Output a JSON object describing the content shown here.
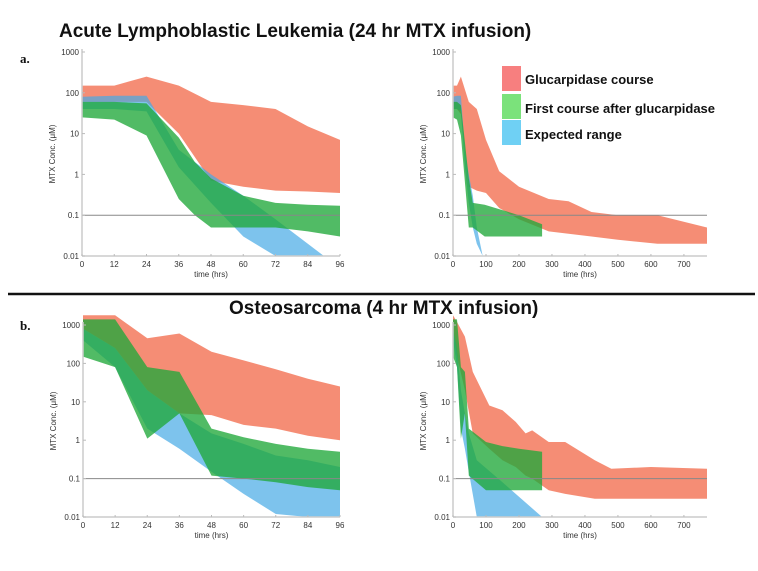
{
  "panel_titles": {
    "a": "Acute Lymphoblastic Leukemia (24 hr MTX infusion)",
    "b": "Osteosarcoma (4 hr MTX infusion)"
  },
  "panel_labels": {
    "a": "a.",
    "b": "b."
  },
  "legend": [
    {
      "label": "Glucarpidase course",
      "color": "#f4826a"
    },
    {
      "label": "First course after glucarpidase",
      "color": "#49b849"
    },
    {
      "label": "Expected range",
      "color": "#5fb8e8"
    }
  ],
  "chart_data": [
    {
      "id": "a-left",
      "type": "area",
      "title": "Acute Lymphoblastic Leukemia (24 hr MTX infusion)",
      "xlabel": "time (hrs)",
      "ylabel": "MTX Conc. (μM)",
      "yscale": "log",
      "xlim": [
        0,
        96
      ],
      "ylim": [
        0.01,
        1000
      ],
      "xticks": [
        0,
        12,
        24,
        36,
        48,
        60,
        72,
        84,
        96
      ],
      "yticks": [
        0.01,
        0.1,
        1,
        10,
        100,
        1000
      ],
      "ytick_labels": [
        "0.01",
        "0.1",
        "1",
        "10",
        "100",
        "1000"
      ],
      "reference_line": 0.1,
      "grid": false,
      "series": [
        {
          "name": "Glucarpidase course",
          "x": [
            0,
            12,
            24,
            36,
            48,
            60,
            72,
            84,
            96
          ],
          "upper": [
            150,
            150,
            250,
            150,
            60,
            50,
            40,
            15,
            7
          ],
          "lower": [
            60,
            60,
            60,
            10,
            0.7,
            0.5,
            0.4,
            0.38,
            0.35
          ]
        },
        {
          "name": "First course after glucarpidase",
          "x": [
            0,
            12,
            24,
            36,
            42,
            48,
            60,
            72,
            84,
            96
          ],
          "upper": [
            60,
            60,
            55,
            8,
            2,
            0.8,
            0.3,
            0.2,
            0.18,
            0.17
          ],
          "lower": [
            25,
            22,
            9,
            0.25,
            0.1,
            0.05,
            0.05,
            0.05,
            0.04,
            0.03
          ]
        },
        {
          "name": "Expected range",
          "x": [
            0,
            12,
            24,
            36,
            48,
            60,
            72,
            84,
            90
          ],
          "upper": [
            80,
            85,
            85,
            4,
            1,
            0.3,
            0.08,
            0.02,
            0.01
          ],
          "lower": [
            40,
            40,
            35,
            1.5,
            0.2,
            0.03,
            0.01,
            0.01,
            0.01
          ]
        }
      ]
    },
    {
      "id": "a-right",
      "type": "area",
      "xlabel": "time (hrs)",
      "ylabel": "MTX Conc. (μM)",
      "yscale": "log",
      "xlim": [
        0,
        770
      ],
      "ylim": [
        0.01,
        1000
      ],
      "xticks": [
        0,
        100,
        200,
        300,
        400,
        500,
        600,
        700
      ],
      "yticks": [
        0.01,
        0.1,
        1,
        10,
        100,
        1000
      ],
      "ytick_labels": [
        "0.01",
        "0.1",
        "1",
        "10",
        "100",
        "1000"
      ],
      "reference_line": 0.1,
      "legend_position": "top-right",
      "series": [
        {
          "name": "Glucarpidase course",
          "x": [
            0,
            12,
            24,
            48,
            72,
            100,
            140,
            200,
            290,
            350,
            420,
            500,
            620,
            770
          ],
          "upper": [
            150,
            150,
            250,
            60,
            40,
            7,
            1.2,
            0.5,
            0.25,
            0.22,
            0.12,
            0.1,
            0.1,
            0.05
          ],
          "lower": [
            40,
            40,
            30,
            0.5,
            0.4,
            0.35,
            0.15,
            0.08,
            0.04,
            0.035,
            0.03,
            0.025,
            0.02,
            0.02
          ]
        },
        {
          "name": "First course after glucarpidase",
          "x": [
            0,
            12,
            24,
            48,
            60,
            96,
            200,
            270
          ],
          "upper": [
            60,
            60,
            50,
            0.8,
            0.2,
            0.18,
            0.1,
            0.06
          ],
          "lower": [
            25,
            22,
            9,
            0.05,
            0.05,
            0.03,
            0.03,
            0.03
          ]
        },
        {
          "name": "Expected range",
          "x": [
            0,
            12,
            24,
            36,
            48,
            60,
            72,
            90
          ],
          "upper": [
            80,
            85,
            85,
            4,
            1,
            0.3,
            0.05,
            0.01
          ],
          "lower": [
            40,
            40,
            35,
            1.5,
            0.2,
            0.05,
            0.02,
            0.01
          ]
        }
      ]
    },
    {
      "id": "b-left",
      "type": "area",
      "title": "Osteosarcoma (4 hr MTX infusion)",
      "xlabel": "time (hrs)",
      "ylabel": "MTX Conc. (μM)",
      "yscale": "log",
      "xlim": [
        0,
        96
      ],
      "ylim": [
        0.01,
        1000
      ],
      "ymax_plot": 1800,
      "xticks": [
        0,
        12,
        24,
        36,
        48,
        60,
        72,
        84,
        96
      ],
      "yticks": [
        0.01,
        0.1,
        1,
        10,
        100,
        1000
      ],
      "ytick_labels": [
        "0.01",
        "0.1",
        "1",
        "10",
        "100",
        "1000"
      ],
      "reference_line": 0.1,
      "series": [
        {
          "name": "Glucarpidase course",
          "x": [
            0,
            12,
            24,
            36,
            48,
            60,
            72,
            84,
            96
          ],
          "upper": [
            1800,
            1800,
            450,
            600,
            200,
            120,
            70,
            40,
            25
          ],
          "lower": [
            800,
            250,
            20,
            5,
            4.5,
            2.5,
            2,
            1.3,
            1
          ]
        },
        {
          "name": "First course after glucarpidase",
          "x": [
            0,
            12,
            24,
            36,
            48,
            60,
            72,
            84,
            96
          ],
          "upper": [
            1400,
            1400,
            80,
            60,
            2,
            1.2,
            0.8,
            0.6,
            0.5
          ],
          "lower": [
            150,
            80,
            1.1,
            5,
            0.12,
            0.1,
            0.08,
            0.06,
            0.05
          ]
        },
        {
          "name": "Expected range",
          "x": [
            0,
            12,
            24,
            36,
            48,
            60,
            72,
            84,
            96
          ],
          "upper": [
            800,
            250,
            20,
            5,
            1.5,
            0.8,
            0.4,
            0.3,
            0.2
          ],
          "lower": [
            400,
            80,
            2,
            0.6,
            0.15,
            0.04,
            0.012,
            0.01,
            0.01
          ]
        }
      ]
    },
    {
      "id": "b-right",
      "type": "area",
      "xlabel": "time (hrs)",
      "ylabel": "MTX Conc. (μM)",
      "yscale": "log",
      "xlim": [
        0,
        770
      ],
      "ylim": [
        0.01,
        1000
      ],
      "ymax_plot": 1800,
      "xticks": [
        0,
        100,
        200,
        300,
        400,
        500,
        600,
        700
      ],
      "yticks": [
        0.01,
        0.1,
        1,
        10,
        100,
        1000
      ],
      "ytick_labels": [
        "0.01",
        "0.1",
        "1",
        "10",
        "100",
        "1000"
      ],
      "reference_line": 0.1,
      "series": [
        {
          "name": "Glucarpidase course",
          "x": [
            0,
            12,
            36,
            60,
            110,
            150,
            190,
            220,
            240,
            290,
            340,
            430,
            480,
            600,
            770
          ],
          "upper": [
            1800,
            1200,
            500,
            60,
            8,
            6,
            3,
            1.5,
            1.8,
            0.9,
            0.9,
            0.3,
            0.18,
            0.2,
            0.18
          ],
          "lower": [
            900,
            150,
            20,
            1.5,
            0.6,
            0.3,
            0.2,
            0.12,
            0.1,
            0.05,
            0.04,
            0.03,
            0.03,
            0.03,
            0.03
          ]
        },
        {
          "name": "First course after glucarpidase",
          "x": [
            0,
            12,
            24,
            36,
            48,
            100,
            150,
            200,
            270
          ],
          "upper": [
            1400,
            1400,
            80,
            60,
            2,
            0.9,
            0.7,
            0.6,
            0.5
          ],
          "lower": [
            150,
            80,
            1.1,
            5,
            0.12,
            0.05,
            0.05,
            0.05,
            0.05
          ]
        },
        {
          "name": "Expected range",
          "x": [
            0,
            12,
            24,
            36,
            48,
            72,
            150,
            270
          ],
          "upper": [
            800,
            250,
            20,
            5,
            1.5,
            0.3,
            0.08,
            0.01
          ],
          "lower": [
            400,
            80,
            2,
            0.6,
            0.15,
            0.01,
            0.01,
            0.01
          ]
        }
      ]
    }
  ]
}
